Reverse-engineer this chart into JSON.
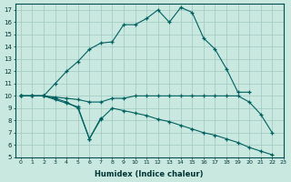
{
  "xlabel": "Humidex (Indice chaleur)",
  "ylabel": "",
  "xlim": [
    -0.5,
    23
  ],
  "ylim": [
    5,
    17.5
  ],
  "xticks": [
    0,
    1,
    2,
    3,
    4,
    5,
    6,
    7,
    8,
    9,
    10,
    11,
    12,
    13,
    14,
    15,
    16,
    17,
    18,
    19,
    20,
    21,
    22,
    23
  ],
  "yticks": [
    5,
    6,
    7,
    8,
    9,
    10,
    11,
    12,
    13,
    14,
    15,
    16,
    17
  ],
  "bg_color": "#c8e8e0",
  "grid_color": "#a0c8c0",
  "line_color": "#006060",
  "lines": [
    {
      "x": [
        0,
        1,
        2,
        3,
        4,
        5,
        6,
        7,
        8,
        9,
        10,
        11,
        12,
        13,
        14,
        15,
        16,
        17,
        18,
        19,
        20
      ],
      "y": [
        10,
        10,
        10,
        11,
        12,
        12.8,
        13.8,
        14.3,
        14.4,
        15.8,
        15.8,
        16.3,
        17.0,
        16.0,
        17.2,
        16.8,
        14.7,
        13.8,
        12.2,
        10.3,
        10.3
      ]
    },
    {
      "x": [
        0,
        1,
        2,
        3,
        4,
        5,
        6,
        7
      ],
      "y": [
        10,
        10,
        10,
        9.8,
        9.5,
        9.0,
        6.5,
        8.2
      ]
    },
    {
      "x": [
        0,
        1,
        2,
        3,
        4,
        5,
        6,
        7,
        8,
        9,
        10,
        11,
        12,
        13,
        14,
        15,
        16,
        17,
        18,
        19,
        20,
        21,
        22
      ],
      "y": [
        10,
        10,
        10,
        9.7,
        9.4,
        9.1,
        6.5,
        8.1,
        9.0,
        8.8,
        8.6,
        8.4,
        8.1,
        7.9,
        7.6,
        7.3,
        7.0,
        6.8,
        6.5,
        6.2,
        5.8,
        5.5,
        5.2
      ]
    },
    {
      "x": [
        0,
        1,
        2,
        3,
        4,
        5,
        6,
        7,
        8,
        9,
        10,
        11,
        12,
        13,
        14,
        15,
        16,
        17,
        18,
        19,
        20,
        21,
        22
      ],
      "y": [
        10,
        10,
        10,
        9.9,
        9.8,
        9.7,
        9.5,
        9.5,
        9.8,
        9.8,
        10.0,
        10.0,
        10.0,
        10.0,
        10.0,
        10.0,
        10.0,
        10.0,
        10.0,
        10.0,
        9.5,
        8.5,
        7.0
      ]
    }
  ]
}
